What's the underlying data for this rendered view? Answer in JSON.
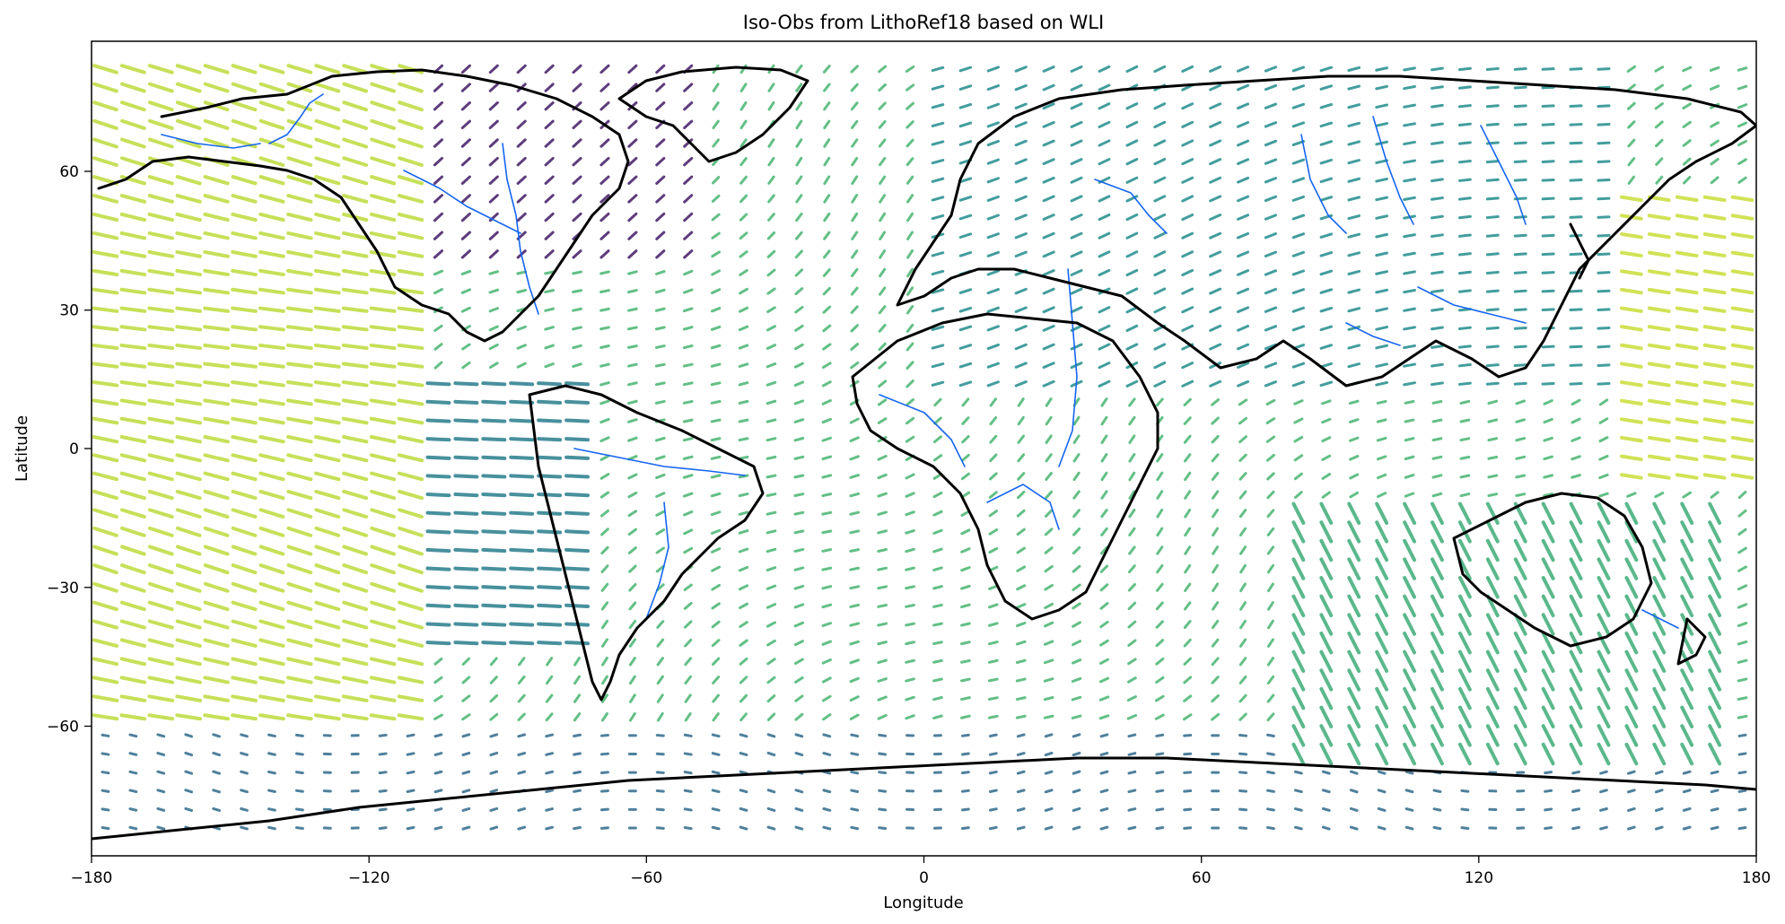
{
  "title": "Iso-Obs from LithoRef18 based on WLI",
  "xlabel": "Longitude",
  "ylabel": "Latitude",
  "xticks": [
    -180,
    -120,
    -60,
    0,
    60,
    120,
    180
  ],
  "yticks": [
    60,
    30,
    0,
    -30,
    -60
  ],
  "xtick_labels": [
    "−180",
    "−120",
    "−60",
    "0",
    "60",
    "120",
    "180"
  ],
  "ytick_labels": [
    "60",
    "30",
    "0",
    "−30",
    "−60"
  ],
  "chart_data": {
    "type": "quiver",
    "projection": "PlateCarree",
    "xlim": [
      -180,
      180
    ],
    "ylim": [
      -88,
      88
    ],
    "grid": false,
    "colormap": "viridis",
    "layers": [
      "coastlines",
      "rivers",
      "vector-field"
    ],
    "colors": {
      "coastline": "#000000",
      "rivers": "#1565f0"
    }
  }
}
